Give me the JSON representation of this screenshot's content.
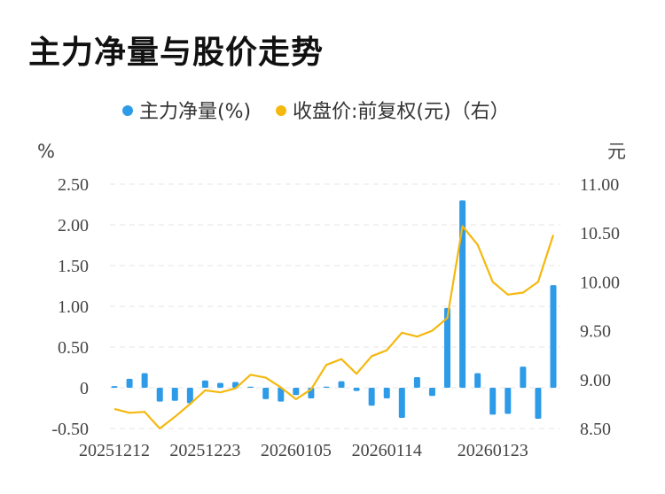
{
  "title": "主力净量与股价走势",
  "chart_data": {
    "type": "bar+line",
    "legend": [
      {
        "label": "主力净量(%)",
        "color": "#2e9be8"
      },
      {
        "label": "收盘价:前复权(元)（右）",
        "color": "#f5b80f"
      }
    ],
    "y_left": {
      "unit": "%",
      "min": -0.5,
      "max": 2.5,
      "ticks": [
        "2.50",
        "2.00",
        "1.50",
        "1.00",
        "0.50",
        "0",
        "-0.50"
      ]
    },
    "y_right": {
      "unit": "元",
      "min": 8.5,
      "max": 11.0,
      "ticks": [
        "11.00",
        "10.50",
        "10.00",
        "9.50",
        "9.00",
        "8.50"
      ]
    },
    "x_ticks": [
      {
        "label": "20251212",
        "index": 0
      },
      {
        "label": "20251223",
        "index": 6
      },
      {
        "label": "20260105",
        "index": 12
      },
      {
        "label": "20260114",
        "index": 18
      },
      {
        "label": "20260123",
        "index": 25
      }
    ],
    "bar_series": {
      "name": "主力净量(%)",
      "values": [
        0.02,
        0.11,
        0.18,
        -0.17,
        -0.16,
        -0.19,
        0.09,
        0.06,
        0.07,
        0.01,
        -0.14,
        -0.17,
        -0.09,
        -0.13,
        0.0,
        0.08,
        -0.04,
        -0.22,
        -0.13,
        -0.37,
        0.13,
        -0.1,
        0.98,
        2.3,
        0.18,
        -0.33,
        -0.32,
        0.26,
        -0.38,
        1.26
      ]
    },
    "line_series": {
      "name": "收盘价:前复权(元)（右）",
      "values": [
        8.7,
        8.66,
        8.67,
        8.5,
        8.62,
        8.75,
        8.89,
        8.87,
        8.91,
        9.05,
        9.02,
        8.92,
        8.8,
        8.9,
        9.15,
        9.21,
        9.06,
        9.24,
        9.3,
        9.48,
        9.44,
        9.5,
        9.63,
        10.57,
        10.38,
        10.0,
        9.87,
        9.89,
        10.0,
        10.48
      ]
    }
  }
}
